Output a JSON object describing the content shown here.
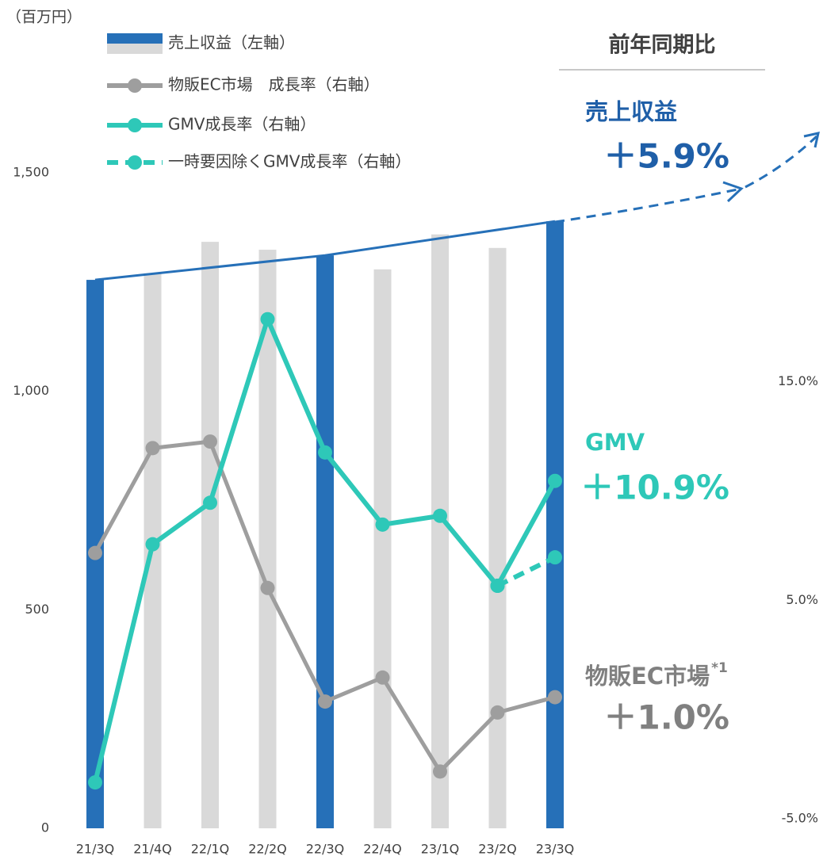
{
  "chart_data": {
    "type": "combo",
    "ylabel": "（百万円）",
    "categories": [
      "21/3Q",
      "21/4Q",
      "22/1Q",
      "22/2Q",
      "22/3Q",
      "22/4Q",
      "23/1Q",
      "23/2Q",
      "23/3Q"
    ],
    "ylim": [
      0,
      1500
    ],
    "yticks": [
      0,
      500,
      {
        "value": 1000,
        "label": "1,000"
      },
      {
        "value": 1500,
        "label": "1,500"
      }
    ],
    "y2lim": [
      -5,
      25
    ],
    "y2ticks": [
      {
        "value": -5,
        "label": "-5.0%"
      },
      {
        "value": 5,
        "label": "5.0%"
      },
      {
        "value": 15,
        "label": "15.0%"
      }
    ],
    "series": [
      {
        "name": "売上収益（左軸）",
        "type": "bar",
        "colors": [
          "#2670b8",
          "#d9d9d9",
          "#d9d9d9",
          "#d9d9d9",
          "#2670b8",
          "#d9d9d9",
          "#d9d9d9",
          "#d9d9d9",
          "#2670b8"
        ],
        "values": [
          1255,
          1270,
          1342,
          1324,
          1311,
          1279,
          1359,
          1328,
          1389
        ]
      },
      {
        "name": "物販EC市場　成長率（右軸）",
        "type": "line",
        "axis": "y2",
        "color": "#9e9e9e",
        "values": [
          7.6,
          12.4,
          12.7,
          6.0,
          0.8,
          1.9,
          -2.4,
          0.3,
          1.0
        ]
      },
      {
        "name": "GMV成長率（右軸）",
        "type": "line",
        "axis": "y2",
        "color": "#2ec8b8",
        "values": [
          -2.9,
          8.0,
          9.9,
          18.3,
          12.2,
          8.9,
          9.3,
          6.1,
          10.9
        ]
      },
      {
        "name": "一時要因除くGMV成長率（右軸）",
        "type": "line",
        "axis": "y2",
        "color": "#2ec8b8",
        "dashed": true,
        "values": [
          null,
          null,
          null,
          null,
          null,
          null,
          null,
          6.1,
          7.4
        ]
      }
    ],
    "panel": {
      "title": "前年同期比",
      "items": [
        {
          "label": "売上収益",
          "text": "＋5.9%",
          "color": "#1f5fa8"
        },
        {
          "label": "GMV",
          "text": "＋10.9%",
          "color": "#2ec8b8"
        },
        {
          "label": "物販EC市場",
          "note": "*1",
          "text": "＋1.0%",
          "color": "#808080"
        }
      ]
    }
  }
}
